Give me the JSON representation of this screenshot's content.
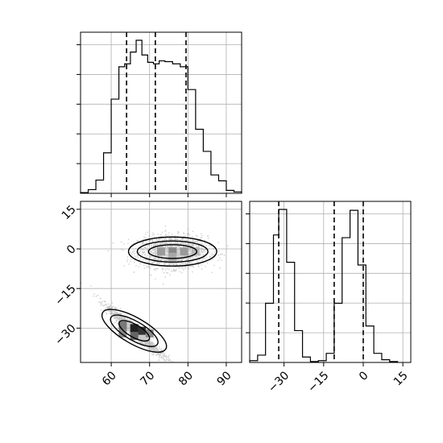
{
  "chart_data": [
    {
      "type": "histogram",
      "panel": "top-left",
      "xlim": [
        52,
        94
      ],
      "x_ticks": [
        60,
        70,
        80,
        90
      ],
      "y_ticklabels_shown": false,
      "grid": true,
      "bins": [
        {
          "x0": 52,
          "x1": 54,
          "count": 1
        },
        {
          "x0": 54,
          "x1": 56,
          "count": 5
        },
        {
          "x0": 56,
          "x1": 58,
          "count": 18
        },
        {
          "x0": 58,
          "x1": 60,
          "count": 55
        },
        {
          "x0": 60,
          "x1": 62,
          "count": 128
        },
        {
          "x0": 62,
          "x1": 63.5,
          "count": 172
        },
        {
          "x0": 63.5,
          "x1": 65,
          "count": 176
        },
        {
          "x0": 65,
          "x1": 66.5,
          "count": 192
        },
        {
          "x0": 66.5,
          "x1": 68,
          "count": 208
        },
        {
          "x0": 68,
          "x1": 69.5,
          "count": 188
        },
        {
          "x0": 69.5,
          "x1": 71,
          "count": 178
        },
        {
          "x0": 71,
          "x1": 72.5,
          "count": 176
        },
        {
          "x0": 72.5,
          "x1": 74,
          "count": 180
        },
        {
          "x0": 74,
          "x1": 76,
          "count": 179
        },
        {
          "x0": 76,
          "x1": 78,
          "count": 176
        },
        {
          "x0": 78,
          "x1": 80,
          "count": 172
        },
        {
          "x0": 80,
          "x1": 82,
          "count": 141
        },
        {
          "x0": 82,
          "x1": 84,
          "count": 87
        },
        {
          "x0": 84,
          "x1": 86,
          "count": 57
        },
        {
          "x0": 86,
          "x1": 88,
          "count": 25
        },
        {
          "x0": 88,
          "x1": 90,
          "count": 17
        },
        {
          "x0": 90,
          "x1": 92,
          "count": 4
        },
        {
          "x0": 92,
          "x1": 94,
          "count": 2
        }
      ],
      "quantiles": [
        64,
        71.5,
        79.5
      ]
    },
    {
      "type": "scatter",
      "panel": "bottom-left",
      "xlim": [
        52,
        94
      ],
      "ylim": [
        -43,
        18
      ],
      "x_ticks": [
        60,
        70,
        80,
        90
      ],
      "y_ticks": [
        15,
        0,
        -15,
        -30
      ],
      "grid": true,
      "clusters": [
        {
          "center": [
            76,
            -1
          ],
          "spread": [
            4.5,
            3
          ],
          "tilt_deg": 0,
          "n": 1600
        },
        {
          "center": [
            66,
            -31
          ],
          "spread": [
            4,
            2.8
          ],
          "tilt_deg": 35,
          "n": 1600
        }
      ],
      "contour_levels": [
        {
          "cluster": 0,
          "rx": [
            6.3,
            9.2,
            11.5
          ],
          "ry": [
            2.6,
            4.0,
            5.5
          ]
        },
        {
          "cluster": 1,
          "rx": [
            4.5,
            7.0,
            9.5
          ],
          "ry": [
            2.4,
            3.6,
            4.9
          ]
        }
      ]
    },
    {
      "type": "histogram",
      "panel": "bottom-right",
      "xlim": [
        -43,
        18
      ],
      "x_ticks": [
        -30,
        -15,
        0,
        15
      ],
      "y_ticklabels_shown": false,
      "grid": true,
      "bins": [
        {
          "x0": -43,
          "x1": -40,
          "count": 2
        },
        {
          "x0": -40,
          "x1": -37,
          "count": 8
        },
        {
          "x0": -37,
          "x1": -34,
          "count": 65
        },
        {
          "x0": -34,
          "x1": -32,
          "count": 140
        },
        {
          "x0": -32,
          "x1": -29,
          "count": 168
        },
        {
          "x0": -29,
          "x1": -26,
          "count": 110
        },
        {
          "x0": -26,
          "x1": -23,
          "count": 35
        },
        {
          "x0": -23,
          "x1": -20,
          "count": 6
        },
        {
          "x0": -20,
          "x1": -17,
          "count": 1
        },
        {
          "x0": -17,
          "x1": -14,
          "count": 2
        },
        {
          "x0": -14,
          "x1": -11,
          "count": 10
        },
        {
          "x0": -11,
          "x1": -8,
          "count": 65
        },
        {
          "x0": -8,
          "x1": -5,
          "count": 137
        },
        {
          "x0": -5,
          "x1": -2,
          "count": 167
        },
        {
          "x0": -2,
          "x1": 1,
          "count": 107
        },
        {
          "x0": 1,
          "x1": 4,
          "count": 40
        },
        {
          "x0": 4,
          "x1": 7,
          "count": 10
        },
        {
          "x0": 7,
          "x1": 10,
          "count": 3
        },
        {
          "x0": 10,
          "x1": 13,
          "count": 1
        }
      ],
      "quantiles": [
        -32,
        -11,
        0
      ]
    }
  ]
}
